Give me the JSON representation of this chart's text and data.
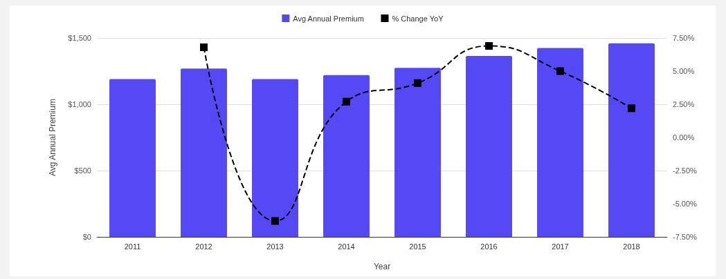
{
  "chart_data": {
    "type": "bar",
    "xlabel": "Year",
    "ylabel": "Avg Annual Premium",
    "categories": [
      "2011",
      "2012",
      "2013",
      "2014",
      "2015",
      "2016",
      "2017",
      "2018"
    ],
    "series": [
      {
        "name": "Avg Annual Premium",
        "color": "#5549f5",
        "values": [
          1190,
          1270,
          1190,
          1220,
          1275,
          1365,
          1425,
          1460
        ]
      },
      {
        "name": "% Change YoY",
        "type": "line",
        "axis": "y2",
        "color": "#000000",
        "marker": "square",
        "line_style": "dashed",
        "values": [
          null,
          6.8,
          -6.3,
          2.7,
          4.1,
          6.9,
          5.0,
          2.2
        ]
      }
    ],
    "ylim": [
      0,
      1500
    ],
    "yticks": [
      {
        "value": 0,
        "label": "$0"
      },
      {
        "value": 500,
        "label": "$500"
      },
      {
        "value": 1000,
        "label": "$1,000"
      },
      {
        "value": 1500,
        "label": "$1,500"
      }
    ],
    "y2lim": [
      -7.5,
      7.5
    ],
    "y2ticks": [
      {
        "value": -7.5,
        "label": "-7.50%"
      },
      {
        "value": -5,
        "label": "-5.00%"
      },
      {
        "value": -2.5,
        "label": "-2.50%"
      },
      {
        "value": 0,
        "label": "0.00%"
      },
      {
        "value": 2.5,
        "label": "2.50%"
      },
      {
        "value": 5,
        "label": "5.00%"
      },
      {
        "value": 7.5,
        "label": "7.50%"
      }
    ],
    "grid": "y",
    "legend": "top"
  }
}
